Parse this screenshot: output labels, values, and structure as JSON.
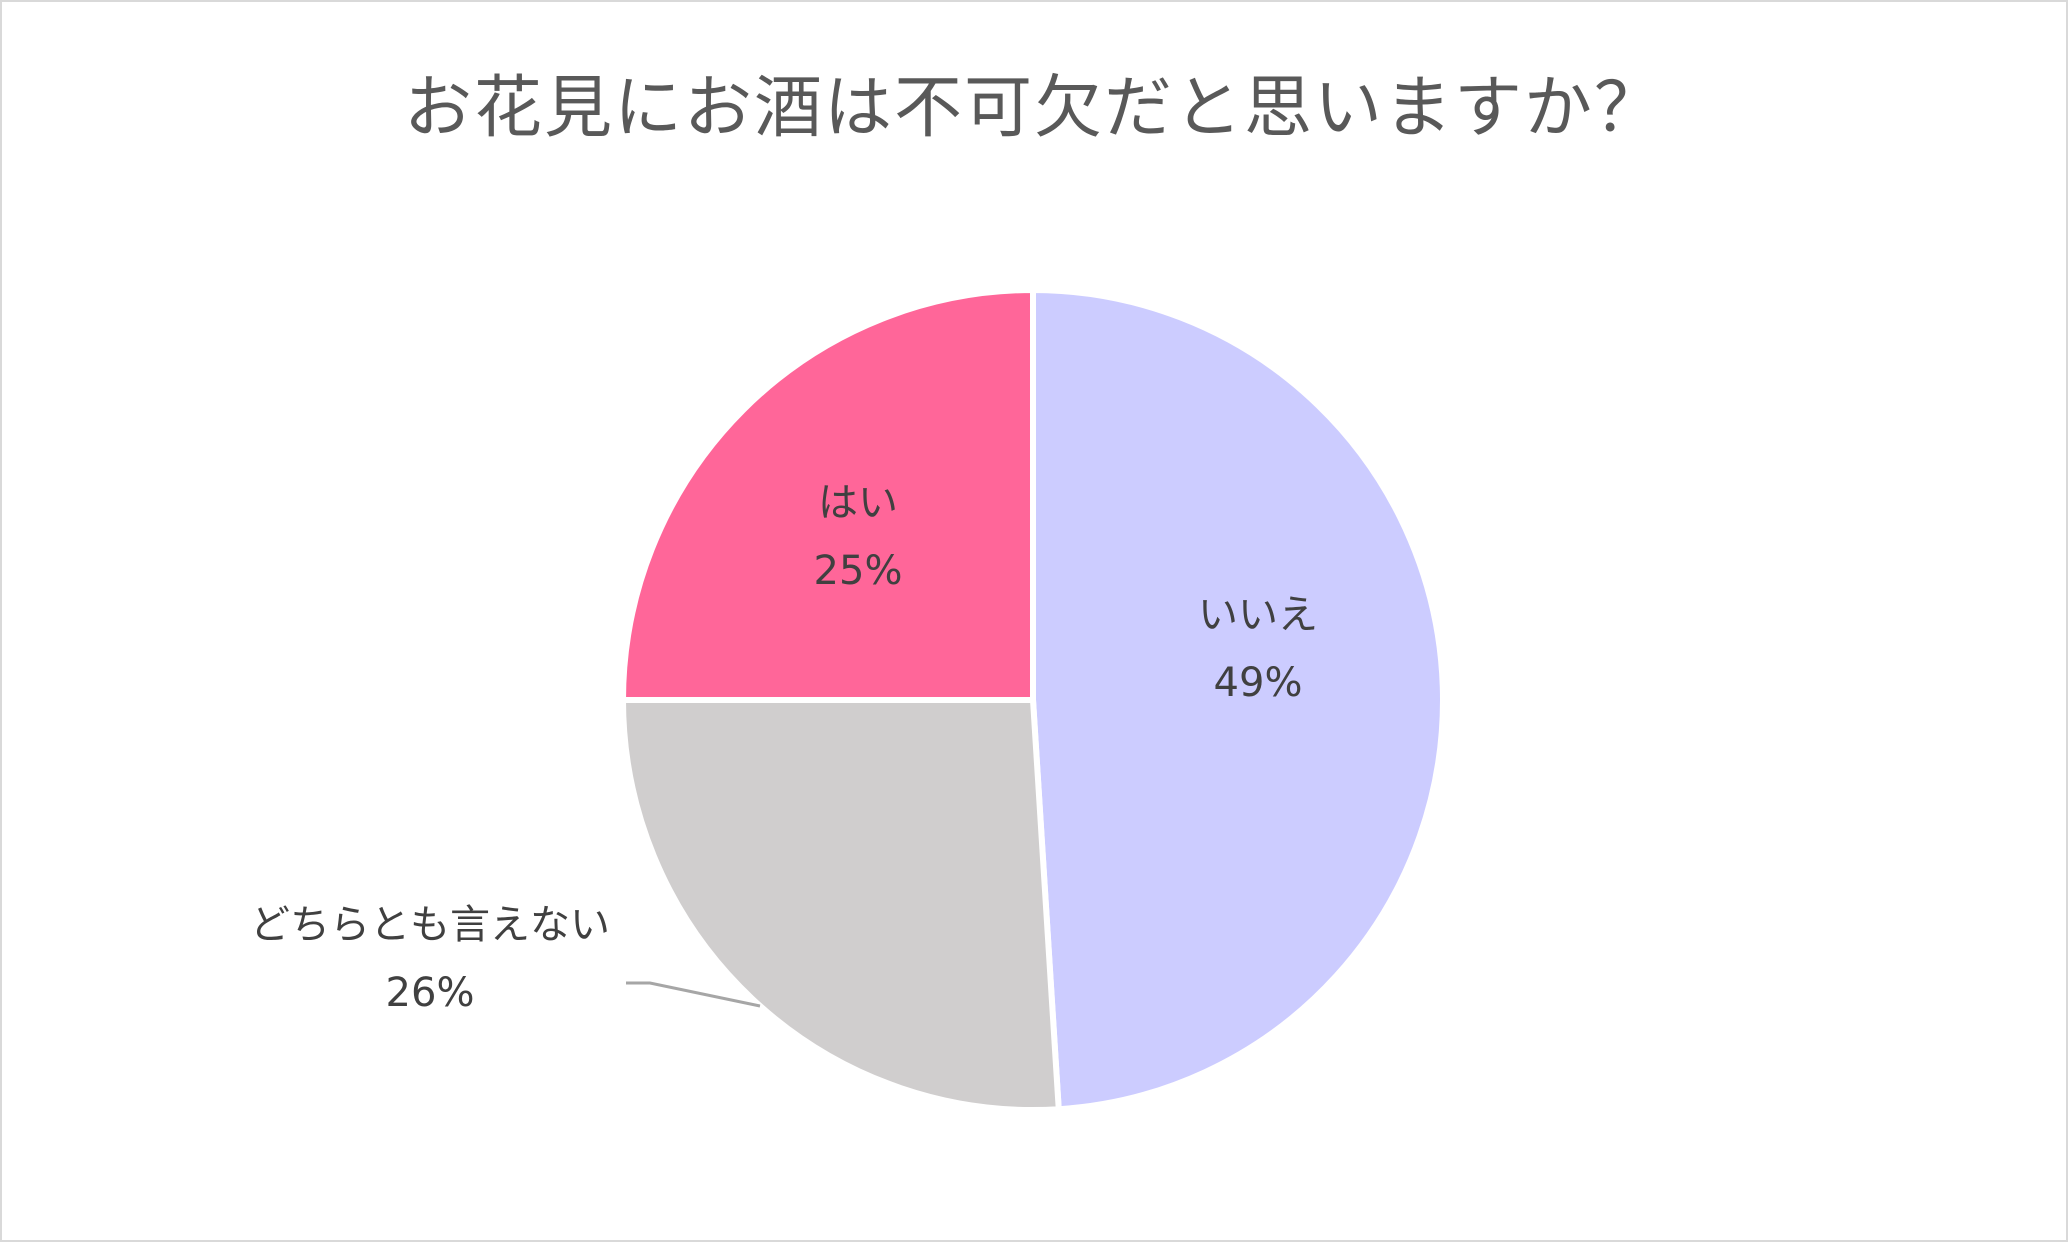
{
  "chart_data": {
    "type": "pie",
    "title": "お花見にお酒は不可欠だと思いますか？",
    "start_angle_deg": 0,
    "direction": "clockwise",
    "slices": [
      {
        "label": "いいえ",
        "value": 49,
        "value_label": "49%",
        "color": "#ccccff"
      },
      {
        "label": "どちらとも言えない",
        "value": 26,
        "value_label": "26%",
        "color": "#d0cece"
      },
      {
        "label": "はい",
        "value": 25,
        "value_label": "25%",
        "color": "#ff6699"
      }
    ],
    "legend": "none",
    "border_color": "#ffffff",
    "leader_line_color": "#a6a6a6"
  }
}
